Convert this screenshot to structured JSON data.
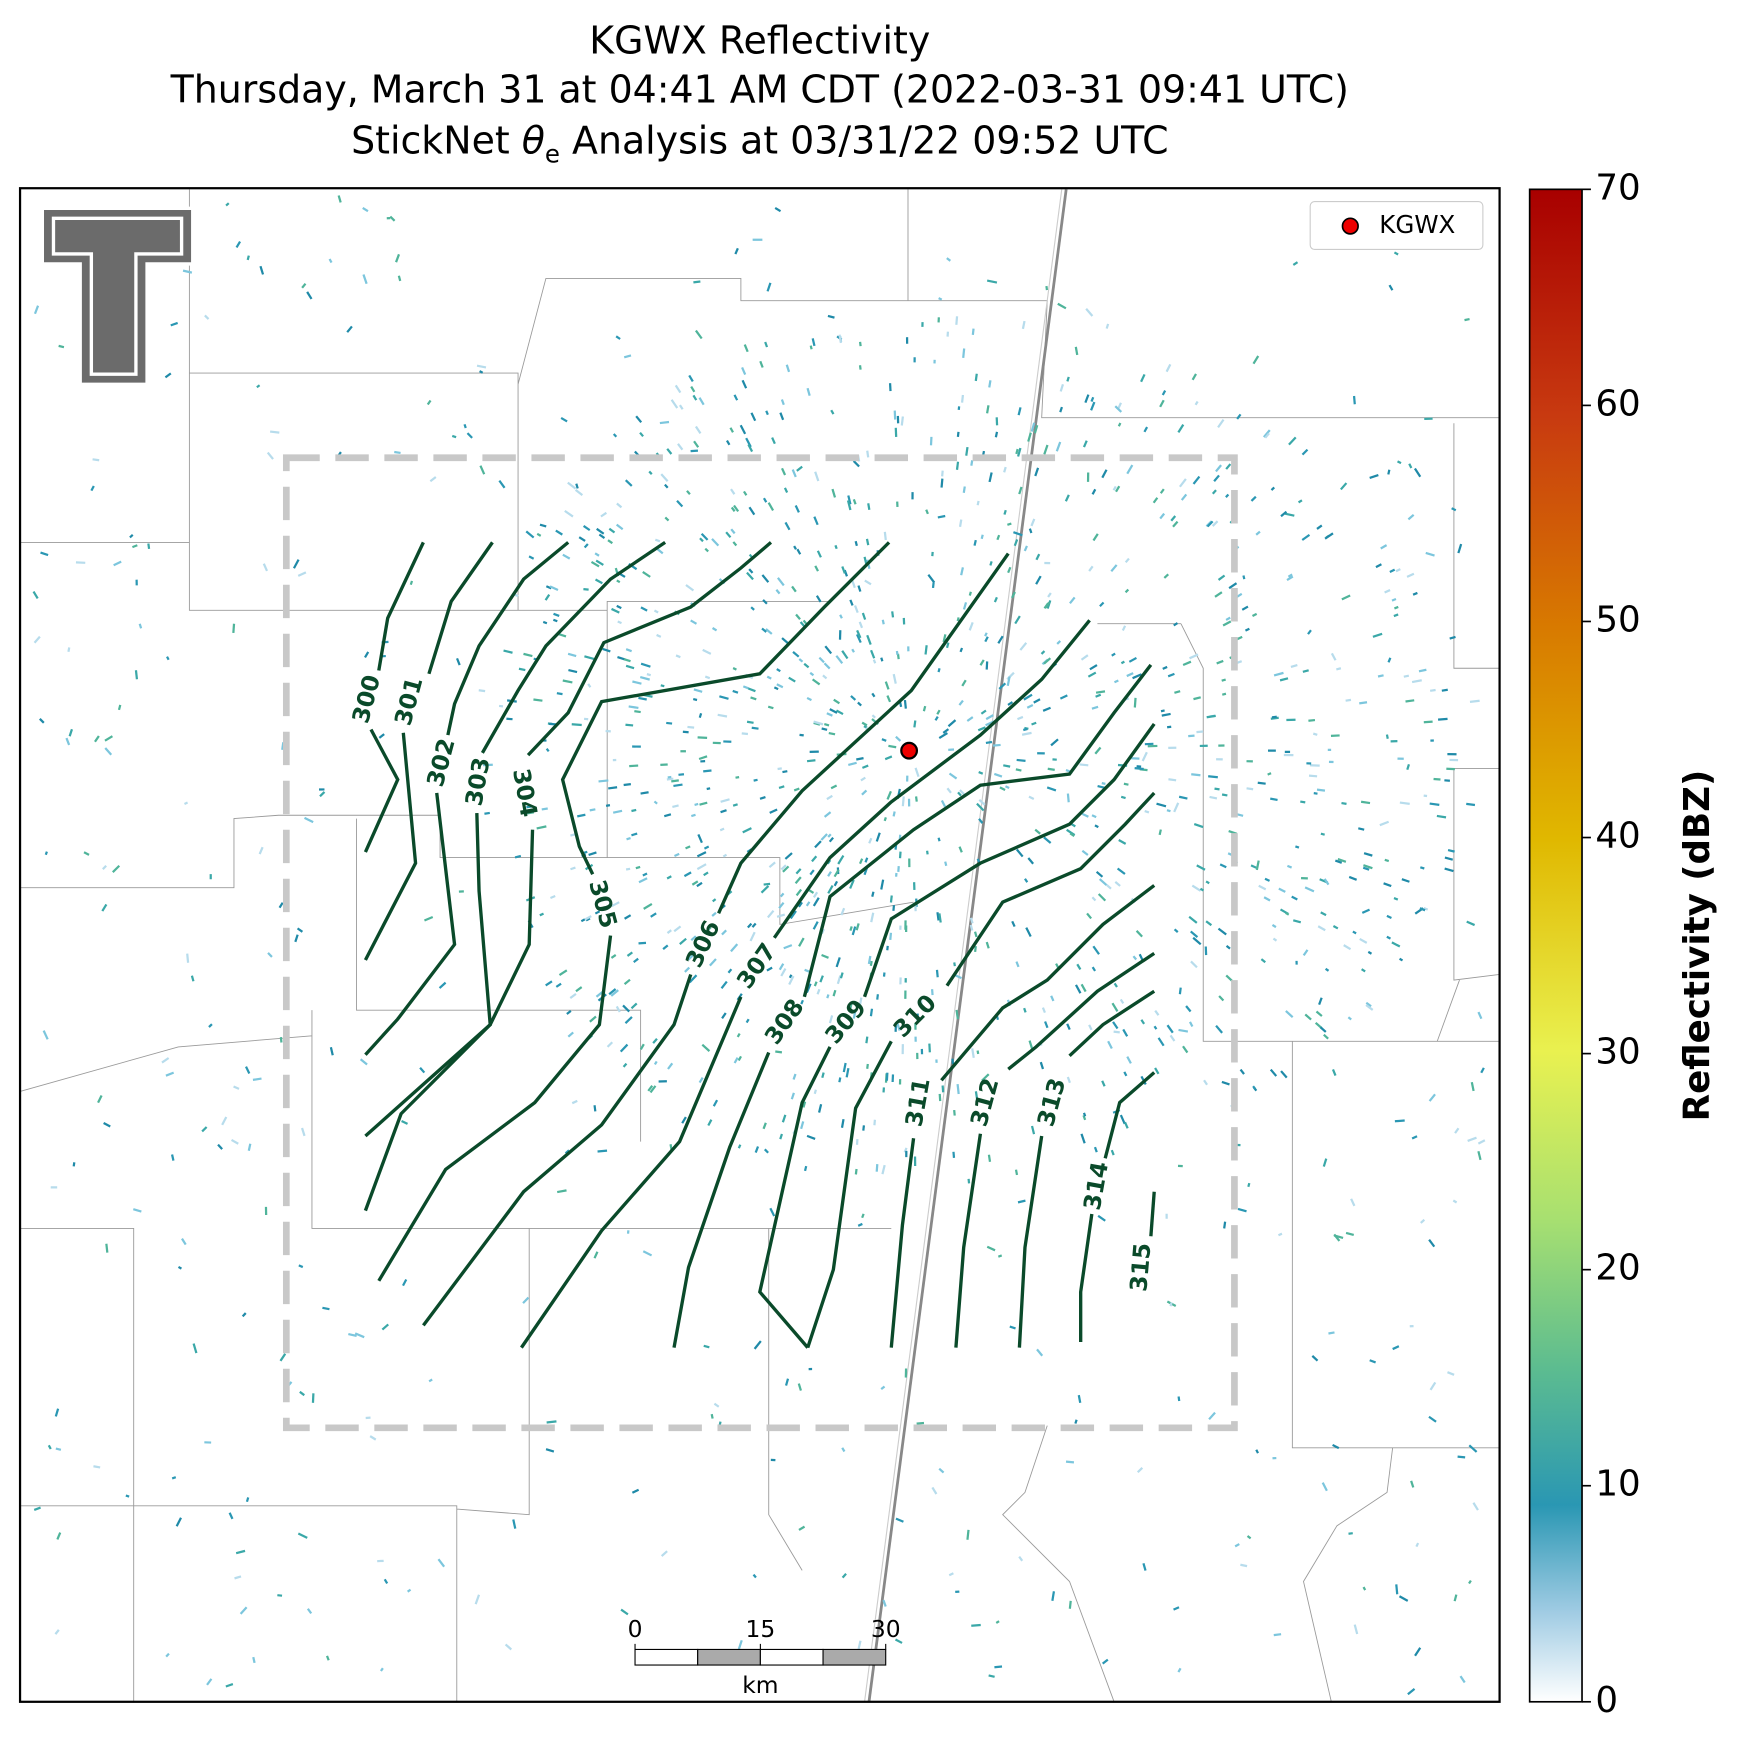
{
  "title": {
    "line1": "KGWX Reflectivity",
    "line2": "Thursday, March 31 at 04:41 AM CDT (2022-03-31 09:41 UTC)",
    "line3": {
      "before": "StickNet ",
      "symbol": "θ",
      "subscript": "e",
      "after": " Analysis at 03/31/22 09:52 UTC"
    }
  },
  "legend": {
    "label": "KGWX",
    "color": "#ee0000"
  },
  "contours": {
    "levels": [
      300,
      301,
      302,
      303,
      304,
      305,
      306,
      307,
      308,
      309,
      310,
      311,
      312,
      313,
      314,
      315
    ],
    "color": "#0a4a2a"
  },
  "colorbar": {
    "label": "Reflectivity (dBZ)",
    "ylim": [
      0,
      70
    ],
    "yticks": [
      0,
      10,
      20,
      30,
      40,
      50,
      60,
      70
    ]
  },
  "scalebar": {
    "ticks": [
      0,
      15,
      30
    ],
    "unit": "km"
  }
}
